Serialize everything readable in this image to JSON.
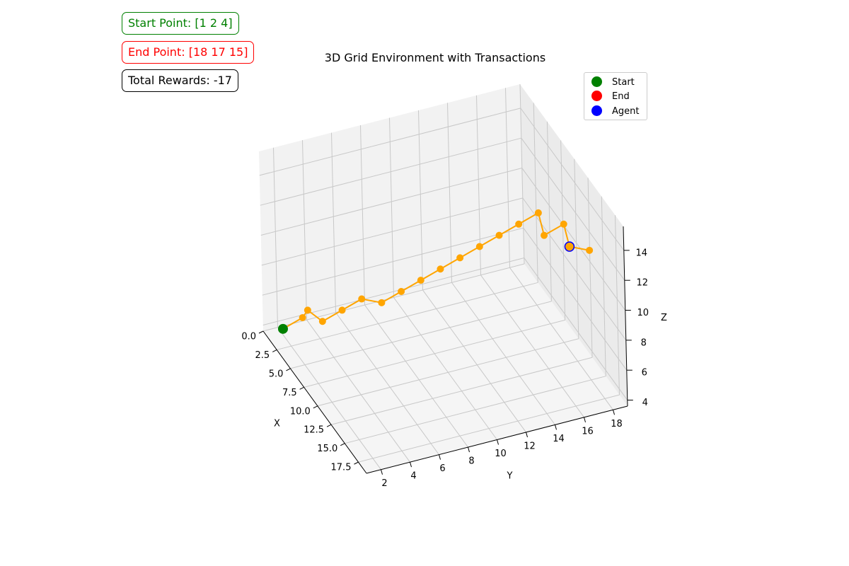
{
  "info": {
    "start_text": "Start Point: [1 2 4]",
    "end_text": "End Point: [18 17 15]",
    "reward_text": "Total Rewards: -17"
  },
  "chart_data": {
    "type": "scatter",
    "title": "3D Grid Environment with Transactions",
    "xlabel": "X",
    "ylabel": "Y",
    "zlabel": "Z",
    "xlim": [
      0,
      19
    ],
    "ylim": [
      1,
      19
    ],
    "zlim": [
      3.6,
      15.6
    ],
    "x_ticks": [
      "0.0",
      "2.5",
      "5.0",
      "7.5",
      "10.0",
      "12.5",
      "15.0",
      "17.5"
    ],
    "y_ticks": [
      "2",
      "4",
      "6",
      "8",
      "10",
      "12",
      "14",
      "16",
      "18"
    ],
    "z_ticks": [
      "4",
      "6",
      "8",
      "10",
      "12",
      "14"
    ],
    "grid": true,
    "legend": [
      "Start",
      "End",
      "Agent"
    ],
    "legend_position": "top-right",
    "colors": {
      "start": "#008000",
      "end": "#ff0000",
      "agent": "#0000ff",
      "path": "#ffa500"
    },
    "start": [
      1,
      2,
      4
    ],
    "end": [
      18,
      17,
      15
    ],
    "agent": [
      17,
      16,
      14
    ],
    "path": [
      [
        1,
        2,
        4
      ],
      [
        2,
        3,
        5
      ],
      [
        3,
        3,
        6
      ],
      [
        3,
        4,
        5
      ],
      [
        4,
        5,
        6
      ],
      [
        5,
        6,
        7
      ],
      [
        6,
        7,
        7
      ],
      [
        7,
        8,
        8
      ],
      [
        8,
        9,
        9
      ],
      [
        9,
        10,
        10
      ],
      [
        10,
        11,
        11
      ],
      [
        11,
        12,
        12
      ],
      [
        12,
        13,
        13
      ],
      [
        13,
        14,
        14
      ],
      [
        14,
        15,
        15
      ],
      [
        15,
        15,
        14
      ],
      [
        16,
        16,
        15
      ],
      [
        17,
        16,
        14
      ],
      [
        18,
        17,
        14
      ]
    ]
  }
}
